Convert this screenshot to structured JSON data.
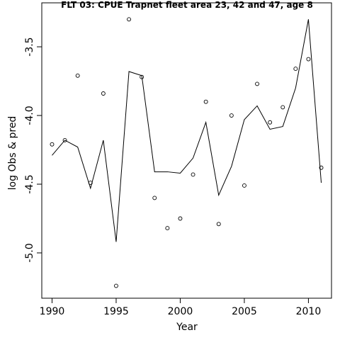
{
  "chart_data": {
    "type": "line",
    "title": "FLT 03: CPUE Trapnet fleet area 23, 42 and 47, age 8",
    "xlabel": "Year",
    "ylabel": "log Obs & pred",
    "xlim": [
      1989.2,
      2011.8
    ],
    "ylim": [
      -5.33,
      -3.18
    ],
    "x_ticks": [
      1990,
      1995,
      2000,
      2005,
      2010
    ],
    "x_tick_labels": [
      "1990",
      "1995",
      "2000",
      "2005",
      "2010"
    ],
    "y_ticks": [
      -5.0,
      -4.5,
      -4.0,
      -3.5
    ],
    "y_tick_labels": [
      "-5.0",
      "-4.5",
      "-4.0",
      "-3.5"
    ],
    "grid": false,
    "series": [
      {
        "style": "points",
        "x": [
          1990,
          1991,
          1992,
          1993,
          1994,
          1995,
          1996,
          1997,
          1998,
          1999,
          2000,
          2001,
          2002,
          2003,
          2004,
          2005,
          2006,
          2007,
          2008,
          2009,
          2010,
          2011
        ],
        "y": [
          -4.21,
          -4.18,
          -3.71,
          -4.49,
          -3.84,
          -5.24,
          -3.3,
          -3.72,
          -4.6,
          -4.82,
          -4.75,
          -4.43,
          -3.9,
          -4.79,
          -4.0,
          -4.51,
          -3.77,
          -4.05,
          -3.94,
          -3.66,
          -3.59,
          -4.38
        ]
      },
      {
        "style": "line",
        "x": [
          1990,
          1991,
          1992,
          1993,
          1994,
          1995,
          1996,
          1997,
          1998,
          1999,
          2000,
          2001,
          2002,
          2003,
          2004,
          2005,
          2006,
          2007,
          2008,
          2009,
          2010,
          2011
        ],
        "y": [
          -4.29,
          -4.18,
          -4.23,
          -4.53,
          -4.18,
          -4.92,
          -3.68,
          -3.71,
          -4.41,
          -4.41,
          -4.42,
          -4.31,
          -4.05,
          -4.58,
          -4.37,
          -4.03,
          -3.93,
          -4.1,
          -4.08,
          -3.8,
          -3.3,
          -4.49
        ]
      }
    ]
  }
}
